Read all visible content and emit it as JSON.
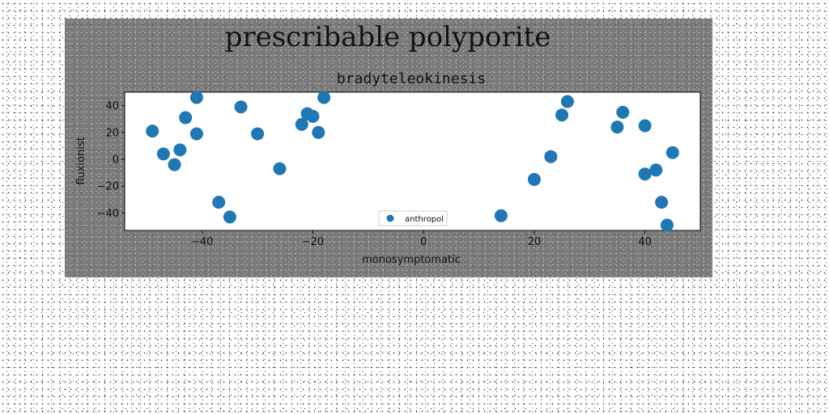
{
  "chart_data": {
    "type": "scatter",
    "suptitle": "prescribable polyporite",
    "title": "bradyteleokinesis",
    "xlabel": "monosymptomatic",
    "ylabel": "fluxionist",
    "xlim": [
      -54,
      50
    ],
    "ylim": [
      -53,
      50
    ],
    "xticks": [
      -40,
      -20,
      0,
      20,
      40
    ],
    "yticks": [
      -40,
      -20,
      0,
      20,
      40
    ],
    "xtick_labels": [
      "−40",
      "−20",
      "0",
      "20",
      "40"
    ],
    "ytick_labels": [
      "−40",
      "−20",
      "0",
      "20",
      "40"
    ],
    "grid": false,
    "legend_position": "lower center",
    "series": [
      {
        "name": "anthropol",
        "color": "#1f77b4",
        "points": [
          {
            "x": -49,
            "y": 21
          },
          {
            "x": -47,
            "y": 4
          },
          {
            "x": -45,
            "y": -4
          },
          {
            "x": -44,
            "y": 7
          },
          {
            "x": -43,
            "y": 31
          },
          {
            "x": -41,
            "y": 46
          },
          {
            "x": -41,
            "y": 19
          },
          {
            "x": -37,
            "y": -32
          },
          {
            "x": -35,
            "y": -43
          },
          {
            "x": -33,
            "y": 39
          },
          {
            "x": -30,
            "y": 19
          },
          {
            "x": -26,
            "y": -7
          },
          {
            "x": -22,
            "y": 26
          },
          {
            "x": -21,
            "y": 34
          },
          {
            "x": -20,
            "y": 32
          },
          {
            "x": -19,
            "y": 20
          },
          {
            "x": -18,
            "y": 46
          },
          {
            "x": 14,
            "y": -42
          },
          {
            "x": 20,
            "y": -15
          },
          {
            "x": 23,
            "y": 2
          },
          {
            "x": 25,
            "y": 33
          },
          {
            "x": 26,
            "y": 43
          },
          {
            "x": 35,
            "y": 24
          },
          {
            "x": 36,
            "y": 35
          },
          {
            "x": 40,
            "y": 25
          },
          {
            "x": 40,
            "y": -11
          },
          {
            "x": 42,
            "y": -8
          },
          {
            "x": 43,
            "y": -32
          },
          {
            "x": 44,
            "y": -49
          },
          {
            "x": 45,
            "y": 5
          }
        ]
      }
    ]
  }
}
